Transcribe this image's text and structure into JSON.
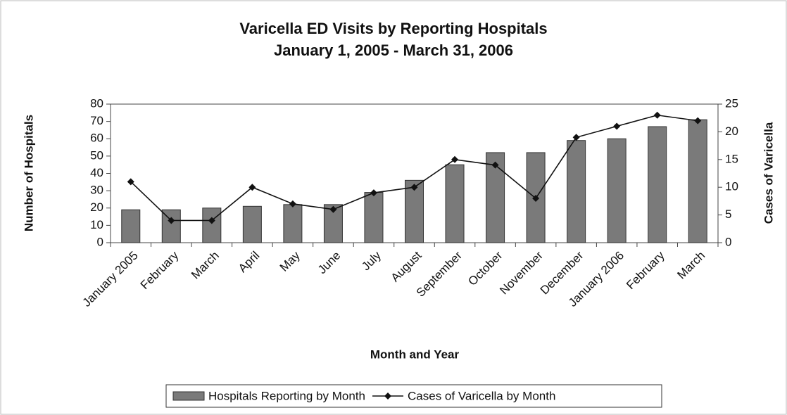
{
  "chart_data": {
    "type": "bar",
    "title": "Varicella ED Visits by Reporting Hospitals",
    "subtitle": "January 1, 2005 - March 31, 2006",
    "x_label": "Month and Year",
    "y_label": "Number of Hospitals",
    "y2_label": "Cases of Varicella",
    "categories": [
      "January 2005",
      "February",
      "March",
      "April",
      "May",
      "June",
      "July",
      "August",
      "September",
      "October",
      "November",
      "December",
      "January 2006",
      "February",
      "March"
    ],
    "series": [
      {
        "name": "Hospitals Reporting by Month",
        "type": "bar",
        "color": "#7a7a7a",
        "values": [
          19,
          19,
          20,
          21,
          22,
          22,
          29,
          36,
          45,
          52,
          52,
          59,
          60,
          67,
          71
        ]
      },
      {
        "name": "Cases of Varicella by Month",
        "type": "line",
        "axis": "y2",
        "color": "#111111",
        "values": [
          11,
          4,
          4,
          10,
          7,
          6,
          9,
          10,
          15,
          14,
          8,
          19,
          21,
          23,
          22
        ]
      }
    ],
    "ylim": [
      0,
      80
    ],
    "yticks": [
      0,
      10,
      20,
      30,
      40,
      50,
      60,
      70,
      80
    ],
    "y2lim": [
      0,
      25
    ],
    "y2ticks": [
      0,
      5,
      10,
      15,
      20,
      25
    ],
    "legend": "bottom"
  }
}
